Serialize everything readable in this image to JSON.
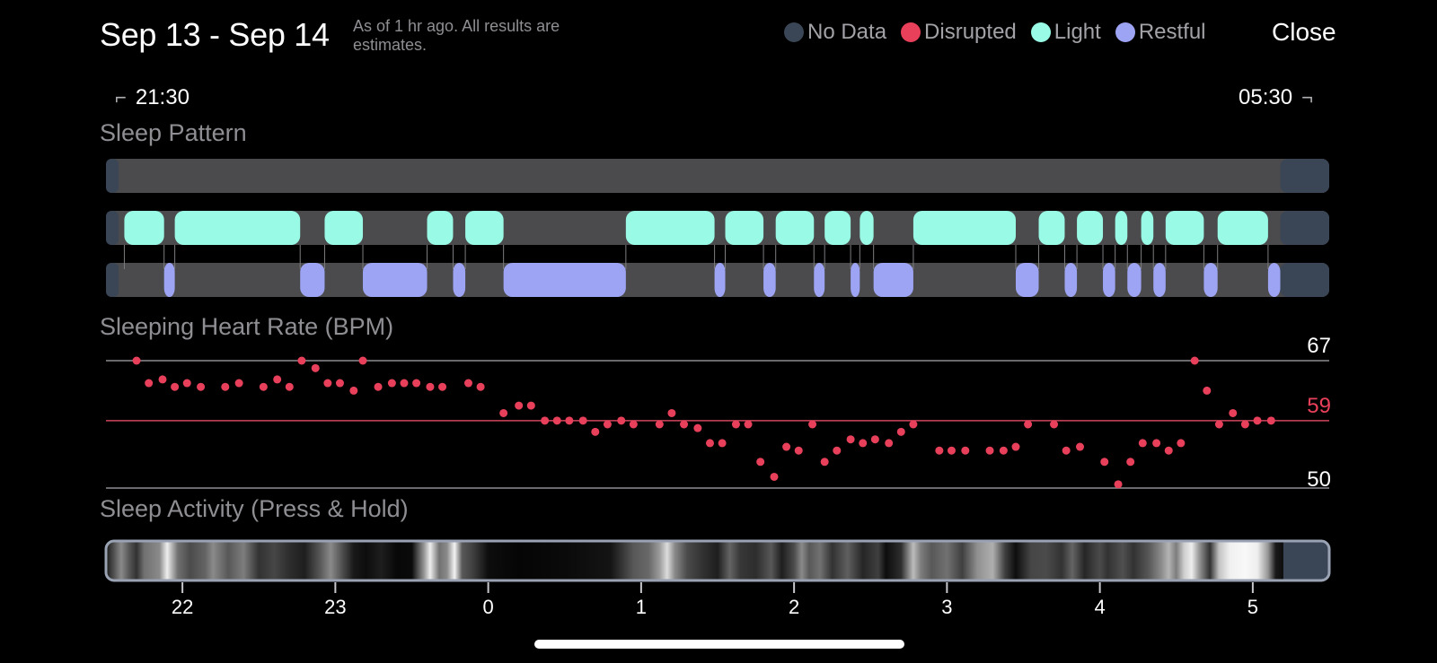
{
  "header": {
    "title": "Sep 13 - Sep 14",
    "subtitle": "As of 1 hr ago. All results are estimates.",
    "close_label": "Close"
  },
  "legend": [
    {
      "label": "No Data",
      "color": "#3a4556"
    },
    {
      "label": "Disrupted",
      "color": "#e8405a"
    },
    {
      "label": "Light",
      "color": "#99fbe6"
    },
    {
      "label": "Restful",
      "color": "#9ea4f4"
    }
  ],
  "range": {
    "start": "21:30",
    "end": "05:30"
  },
  "sleep_pattern": {
    "label": "Sleep Pattern",
    "light": [
      [
        21.62,
        21.88
      ],
      [
        21.95,
        22.77
      ],
      [
        22.93,
        23.18
      ],
      [
        23.6,
        23.77
      ],
      [
        23.85,
        24.1
      ],
      [
        24.9,
        25.48
      ],
      [
        25.55,
        25.8
      ],
      [
        25.88,
        26.13
      ],
      [
        26.2,
        26.37
      ],
      [
        26.43,
        26.52
      ],
      [
        26.78,
        27.45
      ],
      [
        27.6,
        27.77
      ],
      [
        27.85,
        28.02
      ],
      [
        28.1,
        28.18
      ],
      [
        28.27,
        28.35
      ],
      [
        28.43,
        28.68
      ],
      [
        28.77,
        29.1
      ]
    ],
    "restful": [
      [
        21.88,
        21.95
      ],
      [
        22.77,
        22.93
      ],
      [
        23.18,
        23.6
      ],
      [
        23.77,
        23.85
      ],
      [
        24.1,
        24.9
      ],
      [
        25.48,
        25.55
      ],
      [
        25.8,
        25.88
      ],
      [
        26.13,
        26.2
      ],
      [
        26.37,
        26.43
      ],
      [
        26.52,
        26.78
      ],
      [
        27.45,
        27.6
      ],
      [
        27.77,
        27.85
      ],
      [
        28.02,
        28.1
      ],
      [
        28.18,
        28.27
      ],
      [
        28.35,
        28.43
      ],
      [
        28.68,
        28.77
      ],
      [
        29.1,
        29.18
      ]
    ],
    "disrupted": []
  },
  "heart_rate": {
    "label": "Sleeping Heart Rate (BPM)",
    "max_label": "67",
    "avg_label": "59",
    "min_label": "50",
    "max": 67,
    "avg": 59,
    "min": 50,
    "points": [
      [
        21.7,
        67
      ],
      [
        21.78,
        64
      ],
      [
        21.87,
        64.5
      ],
      [
        21.95,
        63.5
      ],
      [
        22.03,
        64
      ],
      [
        22.12,
        63.5
      ],
      [
        22.28,
        63.5
      ],
      [
        22.37,
        64
      ],
      [
        22.53,
        63.5
      ],
      [
        22.62,
        64.5
      ],
      [
        22.7,
        63.5
      ],
      [
        22.78,
        67
      ],
      [
        22.87,
        66
      ],
      [
        22.95,
        64
      ],
      [
        23.03,
        64
      ],
      [
        23.12,
        63
      ],
      [
        23.18,
        67
      ],
      [
        23.28,
        63.5
      ],
      [
        23.37,
        64
      ],
      [
        23.45,
        64
      ],
      [
        23.53,
        64
      ],
      [
        23.62,
        63.5
      ],
      [
        23.7,
        63.5
      ],
      [
        23.87,
        64
      ],
      [
        23.95,
        63.5
      ],
      [
        24.1,
        60
      ],
      [
        24.2,
        61
      ],
      [
        24.28,
        61
      ],
      [
        24.37,
        59
      ],
      [
        24.45,
        59
      ],
      [
        24.53,
        59
      ],
      [
        24.62,
        59
      ],
      [
        24.7,
        57.5
      ],
      [
        24.78,
        58.5
      ],
      [
        24.87,
        59
      ],
      [
        24.95,
        58.5
      ],
      [
        25.12,
        58.5
      ],
      [
        25.2,
        60
      ],
      [
        25.28,
        58.5
      ],
      [
        25.37,
        58
      ],
      [
        25.45,
        56
      ],
      [
        25.53,
        56
      ],
      [
        25.62,
        58.5
      ],
      [
        25.7,
        58.5
      ],
      [
        25.78,
        53.5
      ],
      [
        25.87,
        51.5
      ],
      [
        25.95,
        55.5
      ],
      [
        26.03,
        55
      ],
      [
        26.12,
        58.5
      ],
      [
        26.2,
        53.5
      ],
      [
        26.28,
        55
      ],
      [
        26.37,
        56.5
      ],
      [
        26.45,
        56
      ],
      [
        26.53,
        56.5
      ],
      [
        26.62,
        56
      ],
      [
        26.7,
        57.5
      ],
      [
        26.78,
        58.5
      ],
      [
        26.95,
        55
      ],
      [
        27.03,
        55
      ],
      [
        27.12,
        55
      ],
      [
        27.28,
        55
      ],
      [
        27.37,
        55
      ],
      [
        27.45,
        55.5
      ],
      [
        27.53,
        58.5
      ],
      [
        27.7,
        58.5
      ],
      [
        27.78,
        55
      ],
      [
        27.87,
        55.5
      ],
      [
        28.03,
        53.5
      ],
      [
        28.12,
        50.5
      ],
      [
        28.2,
        53.5
      ],
      [
        28.28,
        56
      ],
      [
        28.37,
        56
      ],
      [
        28.45,
        55
      ],
      [
        28.53,
        56
      ],
      [
        28.62,
        67
      ],
      [
        28.7,
        63
      ],
      [
        28.78,
        58.5
      ],
      [
        28.87,
        60
      ],
      [
        28.95,
        58.5
      ],
      [
        29.03,
        59
      ],
      [
        29.12,
        59
      ]
    ]
  },
  "activity": {
    "label": "Sleep Activity (Press & Hold)",
    "levels": [
      [
        21.5,
        0.1
      ],
      [
        21.55,
        0.32
      ],
      [
        21.6,
        0.55
      ],
      [
        21.65,
        0.35
      ],
      [
        21.7,
        0.2
      ],
      [
        21.75,
        0.45
      ],
      [
        21.85,
        0.55
      ],
      [
        21.9,
        0.95
      ],
      [
        21.97,
        0.45
      ],
      [
        22.05,
        0.3
      ],
      [
        22.15,
        0.4
      ],
      [
        22.2,
        0.55
      ],
      [
        22.3,
        0.35
      ],
      [
        22.4,
        0.5
      ],
      [
        22.5,
        0.2
      ],
      [
        22.6,
        0.28
      ],
      [
        22.7,
        0.18
      ],
      [
        22.8,
        0.12
      ],
      [
        22.9,
        0.35
      ],
      [
        22.97,
        0.55
      ],
      [
        23.05,
        0.3
      ],
      [
        23.12,
        0.1
      ],
      [
        23.2,
        0.05
      ],
      [
        23.3,
        0.12
      ],
      [
        23.4,
        0.03
      ],
      [
        23.5,
        0.04
      ],
      [
        23.58,
        0.6
      ],
      [
        23.62,
        0.95
      ],
      [
        23.68,
        0.45
      ],
      [
        23.73,
        0.55
      ],
      [
        23.78,
        0.97
      ],
      [
        23.83,
        0.35
      ],
      [
        23.9,
        0.25
      ],
      [
        24.0,
        0.05
      ],
      [
        24.2,
        0.02
      ],
      [
        24.5,
        0.04
      ],
      [
        24.8,
        0.08
      ],
      [
        24.88,
        0.22
      ],
      [
        24.95,
        0.35
      ],
      [
        25.05,
        0.42
      ],
      [
        25.12,
        0.62
      ],
      [
        25.17,
        0.88
      ],
      [
        25.22,
        0.55
      ],
      [
        25.3,
        0.3
      ],
      [
        25.4,
        0.2
      ],
      [
        25.5,
        0.12
      ],
      [
        25.58,
        0.4
      ],
      [
        25.65,
        0.22
      ],
      [
        25.75,
        0.18
      ],
      [
        25.85,
        0.35
      ],
      [
        25.92,
        0.12
      ],
      [
        26.0,
        0.3
      ],
      [
        26.05,
        0.55
      ],
      [
        26.1,
        0.35
      ],
      [
        26.17,
        0.45
      ],
      [
        26.25,
        0.2
      ],
      [
        26.35,
        0.38
      ],
      [
        26.45,
        0.15
      ],
      [
        26.55,
        0.25
      ],
      [
        26.6,
        0.05
      ],
      [
        26.7,
        0.18
      ],
      [
        26.78,
        0.75
      ],
      [
        26.83,
        0.5
      ],
      [
        26.9,
        0.35
      ],
      [
        27.0,
        0.45
      ],
      [
        27.1,
        0.25
      ],
      [
        27.2,
        0.58
      ],
      [
        27.3,
        0.7
      ],
      [
        27.38,
        0.25
      ],
      [
        27.45,
        0.05
      ],
      [
        27.55,
        0.28
      ],
      [
        27.65,
        0.3
      ],
      [
        27.75,
        0.2
      ],
      [
        27.82,
        0.4
      ],
      [
        27.9,
        0.15
      ],
      [
        28.0,
        0.3
      ],
      [
        28.05,
        0.2
      ],
      [
        28.15,
        0.32
      ],
      [
        28.22,
        0.2
      ],
      [
        28.32,
        0.35
      ],
      [
        28.4,
        0.55
      ],
      [
        28.45,
        0.72
      ],
      [
        28.5,
        0.5
      ],
      [
        28.55,
        0.82
      ],
      [
        28.6,
        0.95
      ],
      [
        28.65,
        0.6
      ],
      [
        28.72,
        0.2
      ],
      [
        28.78,
        0.78
      ],
      [
        28.85,
        0.96
      ],
      [
        28.95,
        0.99
      ],
      [
        29.03,
        0.95
      ],
      [
        29.1,
        0.6
      ],
      [
        29.15,
        0.1
      ],
      [
        29.2,
        0.05
      ]
    ]
  },
  "axis": {
    "ticks": [
      {
        "value": 22,
        "label": "22"
      },
      {
        "value": 23,
        "label": "23"
      },
      {
        "value": 24,
        "label": "0"
      },
      {
        "value": 25,
        "label": "1"
      },
      {
        "value": 26,
        "label": "2"
      },
      {
        "value": 27,
        "label": "3"
      },
      {
        "value": 28,
        "label": "4"
      },
      {
        "value": 29,
        "label": "5"
      }
    ]
  },
  "colors": {
    "light": "#99fbe6",
    "restful": "#9ea4f4",
    "disrupted": "#e8405a",
    "no_data": "#3a4556",
    "track": "#4b4b4d",
    "avg_line": "#d2455d",
    "ref_line": "#8e8e93",
    "avg_text": "#e8405a"
  }
}
